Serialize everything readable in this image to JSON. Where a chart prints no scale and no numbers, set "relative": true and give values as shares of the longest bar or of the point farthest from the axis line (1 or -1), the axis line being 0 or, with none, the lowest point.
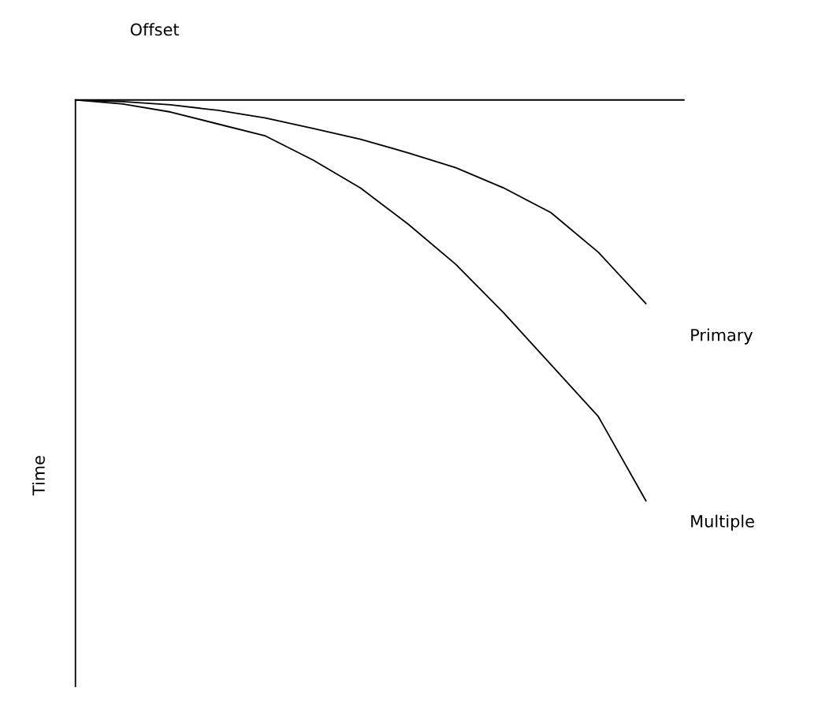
{
  "chart_data": {
    "type": "line",
    "relative": true,
    "xlabel": "Offset",
    "ylabel": "Time",
    "categories": [
      null,
      null,
      null,
      null,
      null,
      null,
      null,
      null,
      null,
      null,
      null,
      null,
      null
    ],
    "series": [
      {
        "name": "Primary",
        "color": "#000000",
        "values": [
          0,
          -0.004,
          -0.012,
          -0.026,
          -0.045,
          -0.071,
          -0.098,
          -0.132,
          -0.169,
          -0.219,
          -0.281,
          -0.38,
          -0.508
        ]
      },
      {
        "name": "Multiple",
        "color": "#000000",
        "values": [
          0,
          -0.01,
          -0.03,
          -0.06,
          -0.09,
          -0.15,
          -0.22,
          -0.31,
          -0.41,
          -0.53,
          -0.66,
          -0.79,
          -1
        ]
      }
    ]
  }
}
